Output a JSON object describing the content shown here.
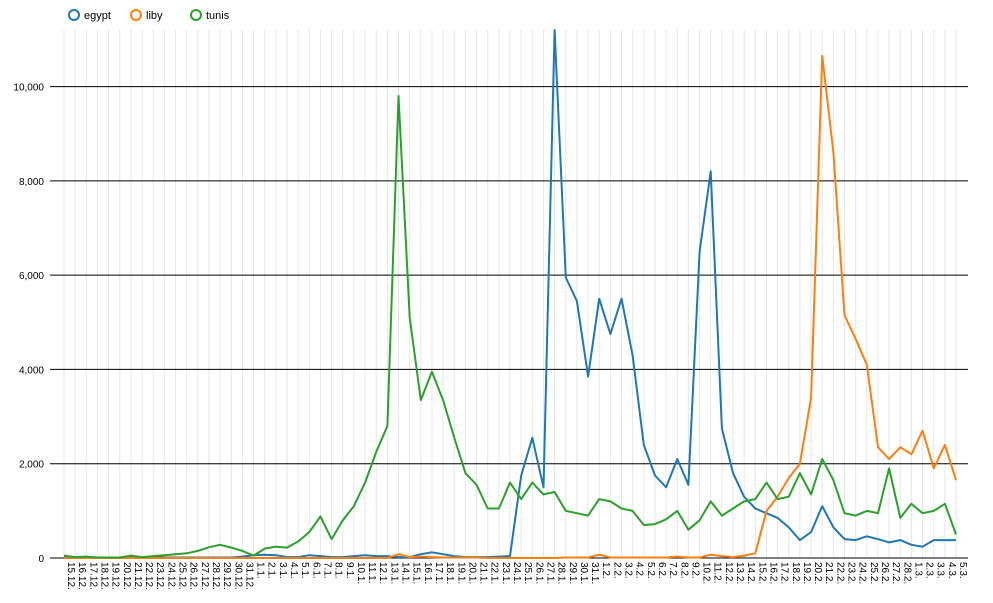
{
  "chart_data": {
    "type": "line",
    "title": "",
    "xlabel": "",
    "ylabel": "",
    "ylim": [
      0,
      11200
    ],
    "yticks": [
      0,
      2000,
      4000,
      6000,
      8000,
      10000
    ],
    "ytick_labels": [
      "0",
      "2,000",
      "4,000",
      "6,000",
      "8,000",
      "10,000"
    ],
    "grid": "horizontal major lines + vertical per-category lines",
    "legend_position": "top-left",
    "categories": [
      "15.12.",
      "16.12.",
      "17.12.",
      "18.12.",
      "19.12.",
      "20.12.",
      "21.12.",
      "22.12.",
      "23.12.",
      "24.12.",
      "25.12.",
      "26.12.",
      "27.12.",
      "28.12.",
      "29.12.",
      "30.12.",
      "31.12.",
      "1.1.",
      "2.1.",
      "3.1.",
      "4.1.",
      "5.1.",
      "6.1.",
      "7.1.",
      "8.1.",
      "9.1.",
      "10.1.",
      "11.1.",
      "12.1.",
      "13.1.",
      "14.1.",
      "15.1.",
      "16.1.",
      "17.1.",
      "18.1.",
      "19.1.",
      "20.1.",
      "21.1.",
      "22.1.",
      "23.1.",
      "24.1.",
      "25.1.",
      "26.1.",
      "27.1.",
      "28.1.",
      "29.1.",
      "30.1.",
      "31.1.",
      "1.2.",
      "2.2.",
      "3.2.",
      "4.2.",
      "5.2.",
      "6.2.",
      "7.2.",
      "8.2.",
      "9.2.",
      "10.2.",
      "11.2.",
      "12.2.",
      "13.2.",
      "14.2.",
      "15.2.",
      "16.2.",
      "17.2.",
      "18.2.",
      "19.2.",
      "20.2.",
      "21.2.",
      "22.2.",
      "23.2.",
      "24.2.",
      "25.2.",
      "26.2.",
      "27.2.",
      "28.2.",
      "1.3.",
      "2.3.",
      "3.3.",
      "4.3.",
      "5.3."
    ],
    "series": [
      {
        "name": "egypt",
        "color": "#1f77b4",
        "values": [
          10,
          10,
          10,
          10,
          10,
          10,
          10,
          10,
          10,
          10,
          10,
          10,
          10,
          10,
          10,
          10,
          30,
          60,
          70,
          60,
          20,
          20,
          60,
          40,
          20,
          20,
          40,
          60,
          40,
          40,
          20,
          20,
          80,
          120,
          80,
          40,
          20,
          20,
          20,
          30,
          40,
          1750,
          2550,
          1500,
          11200,
          5950,
          5450,
          3850,
          5500,
          4750,
          5500,
          4300,
          2400,
          1750,
          1500,
          2100,
          1550,
          6500,
          8200,
          2750,
          1800,
          1300,
          1050,
          950,
          850,
          650,
          380,
          550,
          1100,
          650,
          400,
          380,
          460,
          400,
          330,
          380,
          280,
          240,
          380,
          380,
          380
        ]
      },
      {
        "name": "liby",
        "color": "#ff7f0e",
        "values": [
          0,
          0,
          0,
          0,
          0,
          0,
          0,
          0,
          0,
          0,
          0,
          0,
          0,
          0,
          0,
          0,
          0,
          0,
          0,
          0,
          0,
          0,
          0,
          0,
          0,
          0,
          0,
          0,
          0,
          0,
          80,
          20,
          30,
          20,
          10,
          10,
          10,
          10,
          0,
          0,
          0,
          0,
          0,
          0,
          0,
          10,
          10,
          10,
          70,
          10,
          10,
          10,
          10,
          10,
          10,
          30,
          10,
          10,
          70,
          40,
          20,
          50,
          100,
          1000,
          1300,
          1700,
          2000,
          3400,
          10650,
          8600,
          5150,
          4650,
          4100,
          2350,
          2100,
          2350,
          2200,
          2700,
          1900,
          2400,
          1650
        ]
      },
      {
        "name": "tunis",
        "color": "#2ca02c",
        "values": [
          50,
          20,
          30,
          10,
          10,
          10,
          50,
          20,
          40,
          60,
          80,
          100,
          150,
          230,
          280,
          220,
          150,
          50,
          200,
          240,
          220,
          350,
          550,
          880,
          400,
          800,
          1100,
          1600,
          2250,
          2800,
          9800,
          5100,
          3350,
          3950,
          3350,
          2550,
          1800,
          1550,
          1050,
          1050,
          1600,
          1250,
          1600,
          1350,
          1400,
          1000,
          950,
          900,
          1250,
          1200,
          1050,
          1000,
          700,
          720,
          820,
          1000,
          600,
          800,
          1200,
          900,
          1050,
          1200,
          1250,
          1600,
          1250,
          1300,
          1800,
          1350,
          2100,
          1650,
          950,
          900,
          1000,
          950,
          1900,
          850,
          1150,
          950,
          1000,
          1150,
          500
        ]
      }
    ]
  }
}
